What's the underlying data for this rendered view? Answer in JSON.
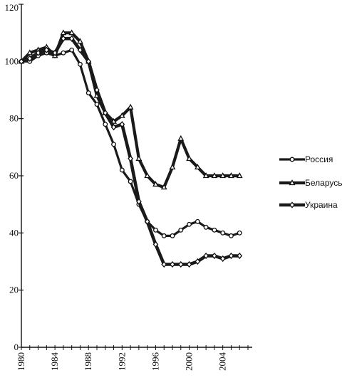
{
  "chart_data": {
    "type": "line",
    "title": "",
    "xlabel": "",
    "ylabel": "",
    "ylim": [
      0,
      120
    ],
    "xlim": [
      1980,
      2007
    ],
    "y_ticks": [
      "0",
      "20",
      "40",
      "60",
      "80",
      "100",
      "120"
    ],
    "x_ticks": [
      {
        "value": 1980,
        "label": "1980"
      },
      {
        "value": 1984,
        "label": "1984"
      },
      {
        "value": 1988,
        "label": "1988"
      },
      {
        "value": 1992,
        "label": "1992"
      },
      {
        "value": 1996,
        "label": "1996"
      },
      {
        "value": 2000,
        "label": "2000"
      },
      {
        "value": 2004,
        "label": "2004"
      }
    ],
    "grid": false,
    "legend_position": "right",
    "x": [
      1980,
      1981,
      1982,
      1983,
      1984,
      1985,
      1986,
      1987,
      1988,
      1989,
      1990,
      1991,
      1992,
      1993,
      1994,
      1995,
      1996,
      1997,
      1998,
      1999,
      2000,
      2001,
      2002,
      2003,
      2004,
      2005,
      2006
    ],
    "series": [
      {
        "name": "Россия",
        "marker": "circle",
        "values": [
          100,
          100,
          102,
          103,
          102,
          103,
          104,
          99,
          89,
          85,
          78,
          71,
          62,
          58,
          50,
          44,
          41,
          39,
          39,
          41,
          43,
          44,
          42,
          41,
          40,
          39,
          40
        ]
      },
      {
        "name": "Беларусь",
        "marker": "triangle",
        "values": [
          100,
          103,
          104,
          105,
          102,
          110,
          110,
          107,
          100,
          88,
          82,
          79,
          81,
          84,
          66,
          60,
          57,
          56,
          63,
          73,
          66,
          63,
          60,
          60,
          60,
          60,
          60
        ]
      },
      {
        "name": "Украина",
        "marker": "diamond",
        "values": [
          100,
          101,
          103,
          104,
          103,
          108,
          108,
          104,
          100,
          90,
          82,
          77,
          78,
          66,
          51,
          44,
          36,
          29,
          29,
          29,
          29,
          30,
          32,
          32,
          31,
          32,
          32
        ]
      }
    ]
  }
}
